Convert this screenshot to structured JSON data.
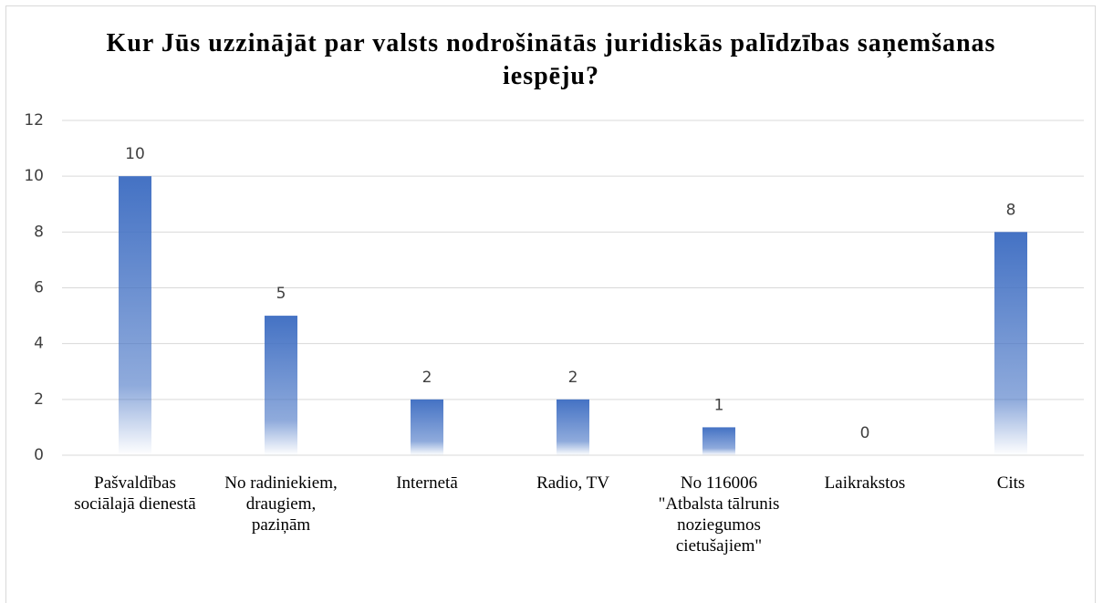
{
  "chart_data": {
    "type": "bar",
    "title": "Kur Jūs uzzinājāt par valsts nodrošinātās juridiskās palīdzības saņemšanas iespēju?",
    "categories": [
      "Pašvaldības sociālajā dienestā",
      "No radiniekiem, draugiem, paziņām",
      "Internetā",
      "Radio, TV",
      "No 116006 \"Atbalsta tālrunis noziegumos cietušajiem\"",
      "Laikrakstos",
      "Cits"
    ],
    "values": [
      10,
      5,
      2,
      2,
      1,
      0,
      8
    ],
    "color": "#4472c4",
    "ylim": [
      0,
      12
    ],
    "yticks": [
      0,
      2,
      4,
      6,
      8,
      10,
      12
    ],
    "grid": true
  }
}
